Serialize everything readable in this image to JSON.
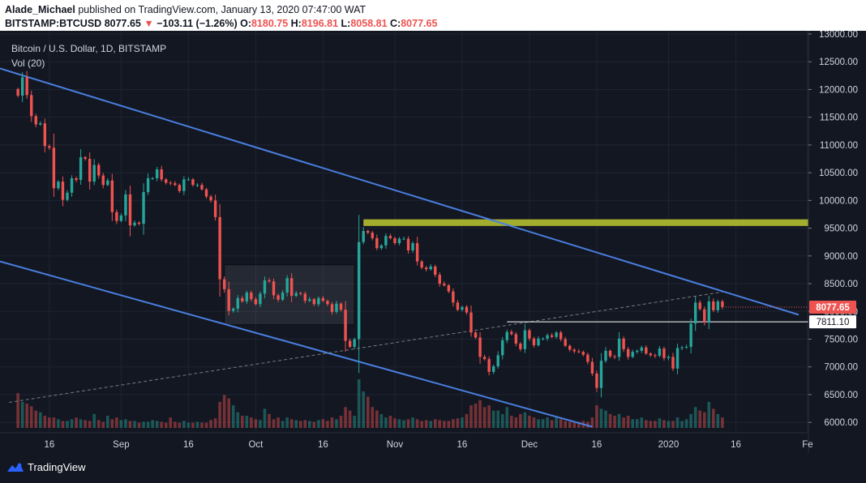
{
  "header": {
    "author": "Alade_Michael",
    "published": "published on TradingView.com, January 13, 2020 07:47:00 WAT",
    "symbol": "BITSTAMP:BTCUSD",
    "last": "8077.65",
    "change": "−103.11 (−1.26%)",
    "o_label": "O:",
    "o_value": "8180.75",
    "h_label": "H:",
    "h_value": "8196.81",
    "l_label": "L:",
    "l_value": "8058.81",
    "c_label": "C:",
    "c_value": "8077.65"
  },
  "legend": {
    "title": "Bitcoin / U.S. Dollar, 1D, BITSTAMP",
    "volume": "Vol (20)"
  },
  "footer": {
    "brand": "TradingView"
  },
  "colors": {
    "up": "#26a69a",
    "down": "#ef5350",
    "trendline": "#4a7fe0",
    "resistance_zone": "#a3ad2e",
    "background": "#131722",
    "grid": "#1f2433"
  },
  "chart_data": {
    "type": "candlestick",
    "instrument": "Bitcoin / U.S. Dollar",
    "interval": "1D",
    "exchange": "BITSTAMP",
    "y_range": [
      5900,
      13000
    ],
    "y_ticks": [
      "13000.00",
      "12500.00",
      "12000.00",
      "11500.00",
      "11000.00",
      "10500.00",
      "10000.00",
      "9500.00",
      "9000.00",
      "8500.00",
      "8000.00",
      "7500.00",
      "7000.00",
      "6500.00",
      "6000.00"
    ],
    "x_ticks": [
      "16",
      "Sep",
      "16",
      "Oct",
      "16",
      "Nov",
      "16",
      "Dec",
      "16",
      "2020",
      "16",
      "Fe"
    ],
    "x_range_dates": [
      "2019-08-05",
      "2020-02-01"
    ],
    "tick_dates": [
      "2019-08-16",
      "2019-09-01",
      "2019-09-16",
      "2019-10-01",
      "2019-10-16",
      "2019-11-01",
      "2019-11-16",
      "2019-12-01",
      "2019-12-16",
      "2020-01-01",
      "2020-01-16",
      "2020-02-01"
    ],
    "price_labels": [
      {
        "text": "8077.65",
        "price": 8077.65,
        "style": "current"
      },
      {
        "text": "7811.10",
        "price": 7811.1,
        "style": "horizontal-line"
      }
    ],
    "last_close": 8077.65,
    "closes": [
      11890,
      12220,
      11900,
      11520,
      11370,
      11390,
      10980,
      10950,
      10220,
      10340,
      10010,
      10140,
      10400,
      10370,
      10780,
      10750,
      10340,
      10640,
      10450,
      10280,
      10360,
      9790,
      9630,
      9730,
      10110,
      9550,
      9600,
      9580,
      10150,
      10400,
      10400,
      10560,
      10380,
      10320,
      10310,
      10280,
      10170,
      10380,
      10380,
      10280,
      10280,
      10200,
      10070,
      10000,
      9700,
      8580,
      8400,
      8010,
      8050,
      8240,
      8180,
      8340,
      8220,
      8130,
      8320,
      8560,
      8540,
      8290,
      8210,
      8340,
      8600,
      8280,
      8330,
      8320,
      8190,
      8220,
      8130,
      8240,
      8190,
      8130,
      7990,
      8140,
      8030,
      7470,
      7360,
      7500,
      9250,
      9450,
      9420,
      9320,
      9140,
      9190,
      9360,
      9320,
      9230,
      9310,
      9310,
      9100,
      9230,
      8900,
      8790,
      8760,
      8810,
      8660,
      8500,
      8470,
      8360,
      8160,
      8030,
      8080,
      7980,
      7620,
      7530,
      7180,
      7140,
      6910,
      7010,
      7210,
      7480,
      7630,
      7590,
      7420,
      7320,
      7660,
      7510,
      7390,
      7510,
      7510,
      7570,
      7540,
      7620,
      7500,
      7380,
      7310,
      7280,
      7270,
      7220,
      7090,
      6880,
      6620,
      7110,
      7290,
      7190,
      7180,
      7510,
      7320,
      7180,
      7270,
      7290,
      7350,
      7240,
      7210,
      7200,
      7330,
      7160,
      7180,
      6970,
      7340,
      7350,
      7360,
      7780,
      8160,
      8040,
      7810,
      8180,
      8020,
      8180,
      8077.65
    ],
    "annotations": [
      {
        "type": "descending-trendline",
        "name": "channel upper",
        "points": [
          [
            "2019-08-05",
            12380
          ],
          [
            "2020-01-30",
            7940
          ]
        ]
      },
      {
        "type": "descending-trendline",
        "name": "channel lower",
        "points": [
          [
            "2019-08-05",
            8900
          ],
          [
            "2019-12-15",
            5920
          ]
        ]
      },
      {
        "type": "dashed-trendline",
        "name": "rising support",
        "points": [
          [
            "2019-08-07",
            6360
          ],
          [
            "2020-01-13",
            8350
          ]
        ]
      },
      {
        "type": "horizontal-zone",
        "name": "resistance",
        "from_date": "2019-10-25",
        "y_range": [
          9540,
          9660
        ]
      },
      {
        "type": "horizontal-line",
        "name": "support 7811.10",
        "from_date": "2019-11-26",
        "value": 7811.1
      },
      {
        "type": "rectangle",
        "name": "consolidation",
        "x_range": [
          "2019-09-24",
          "2019-10-23"
        ],
        "y_range": [
          7760,
          8840
        ]
      }
    ],
    "volume": {
      "label": "Vol (20)",
      "values": [
        40,
        30,
        28,
        25,
        20,
        18,
        14,
        12,
        12,
        10,
        8,
        8,
        10,
        12,
        10,
        9,
        8,
        16,
        9,
        7,
        14,
        10,
        12,
        9,
        10,
        8,
        8,
        6,
        7,
        7,
        9,
        8,
        7,
        6,
        12,
        7,
        6,
        8,
        6,
        6,
        7,
        6,
        6,
        9,
        11,
        30,
        38,
        34,
        26,
        18,
        14,
        14,
        12,
        10,
        9,
        22,
        16,
        10,
        12,
        8,
        12,
        10,
        9,
        8,
        9,
        8,
        7,
        9,
        10,
        8,
        12,
        10,
        14,
        24,
        20,
        14,
        56,
        42,
        36,
        24,
        20,
        16,
        12,
        14,
        11,
        10,
        9,
        10,
        12,
        10,
        8,
        9,
        8,
        10,
        9,
        8,
        8,
        10,
        11,
        12,
        16,
        26,
        28,
        32,
        24,
        26,
        20,
        20,
        16,
        24,
        14,
        12,
        16,
        18,
        14,
        12,
        10,
        10,
        12,
        9,
        12,
        10,
        8,
        7,
        6,
        7,
        8,
        7,
        12,
        26,
        22,
        20,
        16,
        14,
        16,
        12,
        14,
        10,
        10,
        12,
        9,
        8,
        8,
        11,
        9,
        8,
        8,
        12,
        8,
        10,
        16,
        24,
        20,
        18,
        30,
        22,
        16,
        12
      ]
    }
  }
}
